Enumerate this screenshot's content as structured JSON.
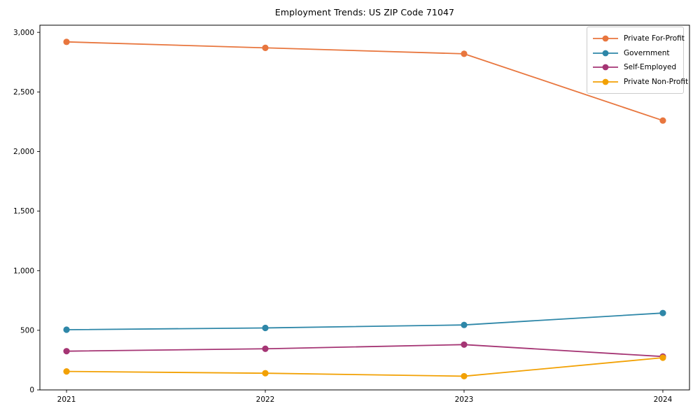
{
  "figure": {
    "background_color": "#ffffff",
    "axis_color": "#000000"
  },
  "chart_data": {
    "type": "line",
    "title": "Employment Trends: US ZIP Code 71047",
    "xlabel": "",
    "ylabel": "",
    "categories": [
      "2021",
      "2022",
      "2023",
      "2024"
    ],
    "series": [
      {
        "name": "Private For-Profit",
        "color": "#e8763e",
        "values": [
          2920,
          2870,
          2820,
          2260
        ]
      },
      {
        "name": "Government",
        "color": "#2e87a8",
        "values": [
          505,
          520,
          545,
          645
        ]
      },
      {
        "name": "Self-Employed",
        "color": "#a53574",
        "values": [
          325,
          345,
          380,
          280
        ]
      },
      {
        "name": "Private Non-Profit",
        "color": "#f2a104",
        "values": [
          155,
          140,
          115,
          270
        ]
      }
    ],
    "ylim": [
      0,
      3060
    ],
    "y_ticks": [
      {
        "value": 0,
        "label": "0"
      },
      {
        "value": 500,
        "label": "500"
      },
      {
        "value": 1000,
        "label": "1,000"
      },
      {
        "value": 1500,
        "label": "1,500"
      },
      {
        "value": 2000,
        "label": "2,000"
      },
      {
        "value": 2500,
        "label": "2,500"
      },
      {
        "value": 3000,
        "label": "3,000"
      }
    ],
    "legend_position": "upper right",
    "grid": false,
    "marker": "circle",
    "line_width": 1.8,
    "marker_radius": 4.6
  }
}
